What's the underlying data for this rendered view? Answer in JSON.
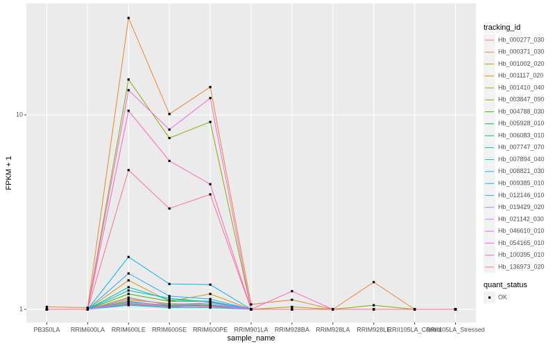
{
  "chart_data": {
    "type": "line",
    "log_y": true,
    "grid": true,
    "x_label": "sample_name",
    "y_label": "FPKM + 1",
    "categories": [
      "PB350LA",
      "RRIM600LA",
      "RRIM600LE",
      "RRIM600SE",
      "RRIM600PE",
      "RRIM901LA",
      "RRIM928BA",
      "RRIM928LA",
      "RRIM928LE",
      "RRII105LA_Control",
      "RRII105LA_Stressed"
    ],
    "ylim": [
      0.856,
      37.4
    ],
    "yticks": [
      1,
      10
    ],
    "legend_title": "tracking_id",
    "legend_position": "right",
    "shape_legend": {
      "title": "quant_status",
      "labels": [
        "OK"
      ],
      "color": "#000000"
    },
    "series": [
      {
        "name": "Hb_000277_030",
        "color": "#F8766D",
        "values": [
          1,
          1,
          1.08,
          1.04,
          1.03,
          1,
          1,
          1,
          1,
          1,
          1
        ]
      },
      {
        "name": "Hb_000371_030",
        "color": "#EA8331",
        "values": [
          1.03,
          1.02,
          31.5,
          10.1,
          13.9,
          1.06,
          1.12,
          1,
          1.38,
          1,
          1
        ]
      },
      {
        "name": "Hb_001002_020",
        "color": "#D89000",
        "values": [
          1,
          1,
          1.41,
          1.1,
          1.2,
          1,
          1,
          1,
          1,
          1,
          1
        ]
      },
      {
        "name": "Hb_001117_020",
        "color": "#C09B00",
        "values": [
          1,
          1,
          1.15,
          1.05,
          1.08,
          1,
          1,
          1,
          1,
          1,
          1
        ]
      },
      {
        "name": "Hb_001410_040",
        "color": "#A3A500",
        "values": [
          1,
          1,
          1.12,
          1.07,
          1.06,
          1,
          1.03,
          1,
          1,
          1,
          1
        ]
      },
      {
        "name": "Hb_003847_090",
        "color": "#7CAE00",
        "values": [
          1,
          1,
          15.2,
          7.6,
          9.2,
          1,
          1,
          1,
          1.05,
          1,
          1
        ]
      },
      {
        "name": "Hb_004788_030",
        "color": "#39B600",
        "values": [
          1,
          1,
          1.2,
          1.1,
          1.1,
          1,
          1,
          1,
          1,
          1,
          1
        ]
      },
      {
        "name": "Hb_005928_010",
        "color": "#00BB4E",
        "values": [
          1,
          1,
          1.1,
          1.04,
          1.05,
          1,
          1,
          1,
          1,
          1,
          1
        ]
      },
      {
        "name": "Hb_006083_010",
        "color": "#00BF7D",
        "values": [
          1,
          1,
          1.06,
          1.03,
          1.04,
          1,
          1,
          1,
          1,
          1,
          1
        ]
      },
      {
        "name": "Hb_007747_070",
        "color": "#00C1A3",
        "values": [
          1,
          1,
          1.3,
          1.12,
          1.1,
          1,
          1,
          1,
          1,
          1,
          1
        ]
      },
      {
        "name": "Hb_007894_040",
        "color": "#00BFC4",
        "values": [
          1,
          1,
          1.05,
          1.02,
          1.02,
          1,
          1,
          1,
          1,
          1,
          1
        ]
      },
      {
        "name": "Hb_008821_030",
        "color": "#00BAE0",
        "values": [
          1,
          1,
          1.25,
          1.14,
          1.09,
          1,
          1,
          1,
          1,
          1,
          1
        ]
      },
      {
        "name": "Hb_009385_010",
        "color": "#00B0F6",
        "values": [
          1,
          1,
          1.86,
          1.35,
          1.34,
          1,
          1,
          1,
          1,
          1,
          1
        ]
      },
      {
        "name": "Hb_012146_010",
        "color": "#35A2FF",
        "values": [
          1,
          1,
          1.53,
          1.17,
          1.13,
          1,
          1,
          1,
          1,
          1,
          1
        ]
      },
      {
        "name": "Hb_019429_020",
        "color": "#9590FF",
        "values": [
          1,
          1,
          1.09,
          1.05,
          1.06,
          1,
          1,
          1,
          1,
          1,
          1
        ]
      },
      {
        "name": "Hb_021142_030",
        "color": "#C77CFF",
        "values": [
          1,
          1,
          1.14,
          1.06,
          1.08,
          1,
          1,
          1,
          1,
          1,
          1
        ]
      },
      {
        "name": "Hb_046610_010",
        "color": "#E76BF3",
        "values": [
          1,
          1,
          1.07,
          1.03,
          1.04,
          1,
          1,
          1,
          1,
          1,
          1
        ]
      },
      {
        "name": "Hb_054165_010",
        "color": "#FA62DB",
        "values": [
          1,
          1,
          13.4,
          8.4,
          12.2,
          1,
          1,
          1,
          1,
          1,
          1
        ]
      },
      {
        "name": "Hb_100395_010",
        "color": "#FF62BC",
        "values": [
          1,
          1,
          10.5,
          5.8,
          4.4,
          1,
          1.24,
          1,
          1,
          1,
          1
        ]
      },
      {
        "name": "Hb_136973_020",
        "color": "#FF6C91",
        "values": [
          1,
          1,
          5.2,
          3.3,
          3.9,
          1,
          1,
          1,
          1,
          1,
          1
        ]
      }
    ]
  }
}
